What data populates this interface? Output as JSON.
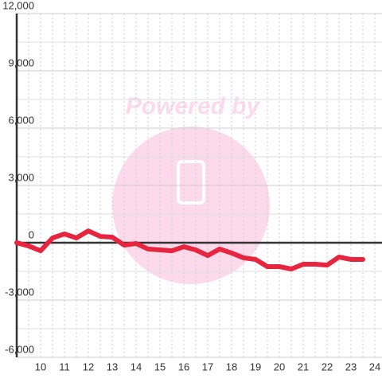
{
  "chart_data": {
    "type": "line",
    "x": [
      9,
      9.5,
      10,
      10.5,
      11,
      11.5,
      12,
      12.5,
      13,
      13.5,
      14,
      14.5,
      15,
      15.5,
      16,
      16.5,
      17,
      17.5,
      18,
      18.5,
      19,
      19.5,
      20,
      20.5,
      21,
      21.5,
      22,
      22.5,
      23,
      23.5
    ],
    "series": [
      {
        "color": "#e8253f",
        "values": [
          0,
          -170,
          -420,
          250,
          460,
          250,
          620,
          330,
          290,
          -125,
          -40,
          -330,
          -375,
          -420,
          -210,
          -375,
          -670,
          -330,
          -540,
          -790,
          -875,
          -1250,
          -1250,
          -1375,
          -1125,
          -1125,
          -1170,
          -750,
          -875,
          -875
        ]
      }
    ],
    "xlim": [
      9,
      24.3
    ],
    "xticks": [
      10,
      11,
      12,
      13,
      14,
      15,
      16,
      17,
      18,
      19,
      20,
      21,
      22,
      23,
      24
    ],
    "ylim": [
      -6000,
      12000
    ],
    "yticks": [
      {
        "value": -6000,
        "label": "-6,000"
      },
      {
        "value": -3000,
        "label": "-3,000"
      },
      0,
      {
        "value": 3000,
        "label": "3,000"
      },
      {
        "value": 6000,
        "label": "6,000"
      },
      {
        "value": 9000,
        "label": "9,000"
      },
      {
        "value": 12000,
        "label": "12,000"
      }
    ],
    "grid": true
  },
  "watermark": "Powered by"
}
